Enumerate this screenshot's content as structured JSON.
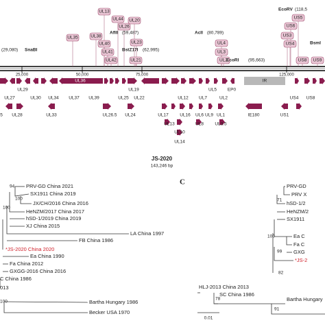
{
  "genome_map": {
    "gene_boxes": [
      "UL13",
      "UL44",
      "UL20",
      "UL26",
      "UL35",
      "UL38",
      "UL40",
      "UL23",
      "UL41",
      "UL42",
      "UL21",
      "UL4",
      "UL3",
      "UL2",
      "US5",
      "US6",
      "US3",
      "US4",
      "US8",
      "US9"
    ],
    "sites": [
      "EcoRV",
      "(118,5",
      "AflII",
      "(59,487)",
      "SnaBI",
      "(29,080)",
      "BstZ17I",
      "(62,995)",
      "AcII",
      "(80,789)",
      "EcoRI",
      "(95,663)",
      "BsmI"
    ],
    "axis_labels": [
      "25,000",
      "50,000",
      "75,000",
      "125,000"
    ],
    "gene_labels": [
      "UL29",
      "UL27",
      "UL30",
      "UL34",
      "UL36",
      "UL37",
      "UL39",
      "UL25",
      "UL22",
      "UL19",
      "UL12",
      "UL7",
      "UL5",
      "UL2",
      "EP0",
      "IR",
      "US4",
      "US8",
      "5",
      "UL28",
      "UL33",
      "UL26.5",
      "UL24",
      "UL17",
      "UL16",
      "UL6",
      "UL9",
      "UL1",
      "IE180",
      "US1",
      "UL13",
      "UL10",
      "UL8",
      "UL3.5",
      "UL14"
    ],
    "name": "JS-2020",
    "length": "143,246 bp"
  },
  "panel_label": "C",
  "left_tree": {
    "leaves": [
      "PRV-GD China 2021",
      "SX1911 China 2019",
      "JX/CH/2016 China 2016",
      "HeNZM/2017 China 2017",
      "hSD-1/2019 China 2019",
      "XJ China 2015",
      "LA China 1997",
      "FB China 1986",
      "*JS-2020 China 2020",
      "Ea China 1990",
      "Fa China 2012",
      "GXGG-2016 China 2016",
      "C China 1986",
      "013",
      "Bartha Hungary 1986",
      "Becker USA 1970"
    ],
    "support": [
      "94",
      "100",
      "100",
      "100"
    ]
  },
  "right_tree": {
    "leaves": [
      "PRV-GD",
      "PRV X",
      "hSD-1/2",
      "HeNZM/2",
      "SX1911",
      "Ea C",
      "Fa C",
      "GXG",
      "*JS-2",
      "HLJ-2013 China 2013",
      "SC China 1986",
      "Bartha Hungary"
    ],
    "support": [
      "71",
      "100",
      "99",
      "82",
      "78",
      "91"
    ]
  },
  "scale_bar": "0.01"
}
